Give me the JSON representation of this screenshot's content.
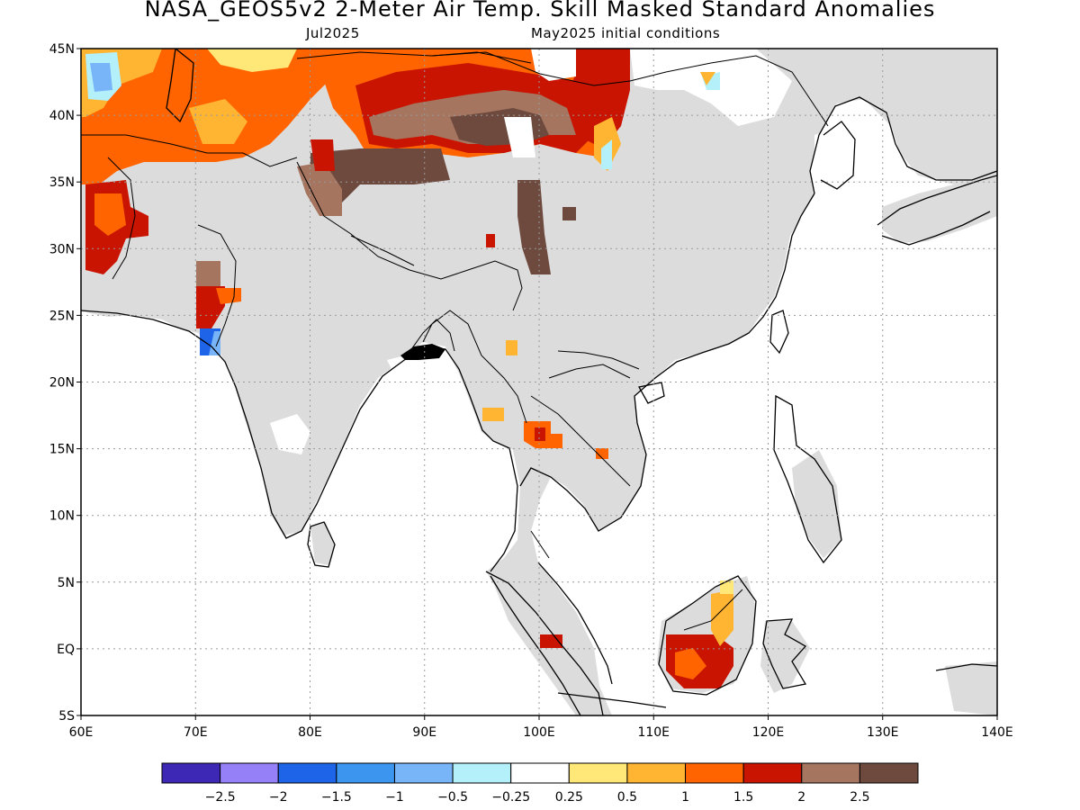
{
  "title": "NASA_GEOS5v2 2-Meter Air Temp. Skill Masked Standard Anomalies",
  "valid_month": "Jul2025",
  "initial_conditions": "May2025 initial conditions",
  "lat_labels": [
    "45N",
    "40N",
    "35N",
    "30N",
    "25N",
    "20N",
    "15N",
    "10N",
    "5N",
    "EQ",
    "5S"
  ],
  "lon_labels": [
    "60E",
    "70E",
    "80E",
    "90E",
    "100E",
    "110E",
    "120E",
    "130E",
    "140E"
  ],
  "legend": {
    "colors": [
      "#3c28b4",
      "#9680f8",
      "#1e64e8",
      "#3c96f0",
      "#78b4f8",
      "#b4f0fa",
      "#ffffff",
      "#ffe878",
      "#ffb432",
      "#ff6400",
      "#c81400",
      "#a57560",
      "#6e4a3e"
    ],
    "labels": [
      "-2.5",
      "-2",
      "-1.5",
      "-1",
      "-0.5",
      "-0.25",
      "0.25",
      "0.5",
      "1",
      "1.5",
      "2",
      "2.5"
    ]
  },
  "fill_colors": {
    "skill_mask": "#dcdcdc",
    "ocean": "#ffffff"
  }
}
